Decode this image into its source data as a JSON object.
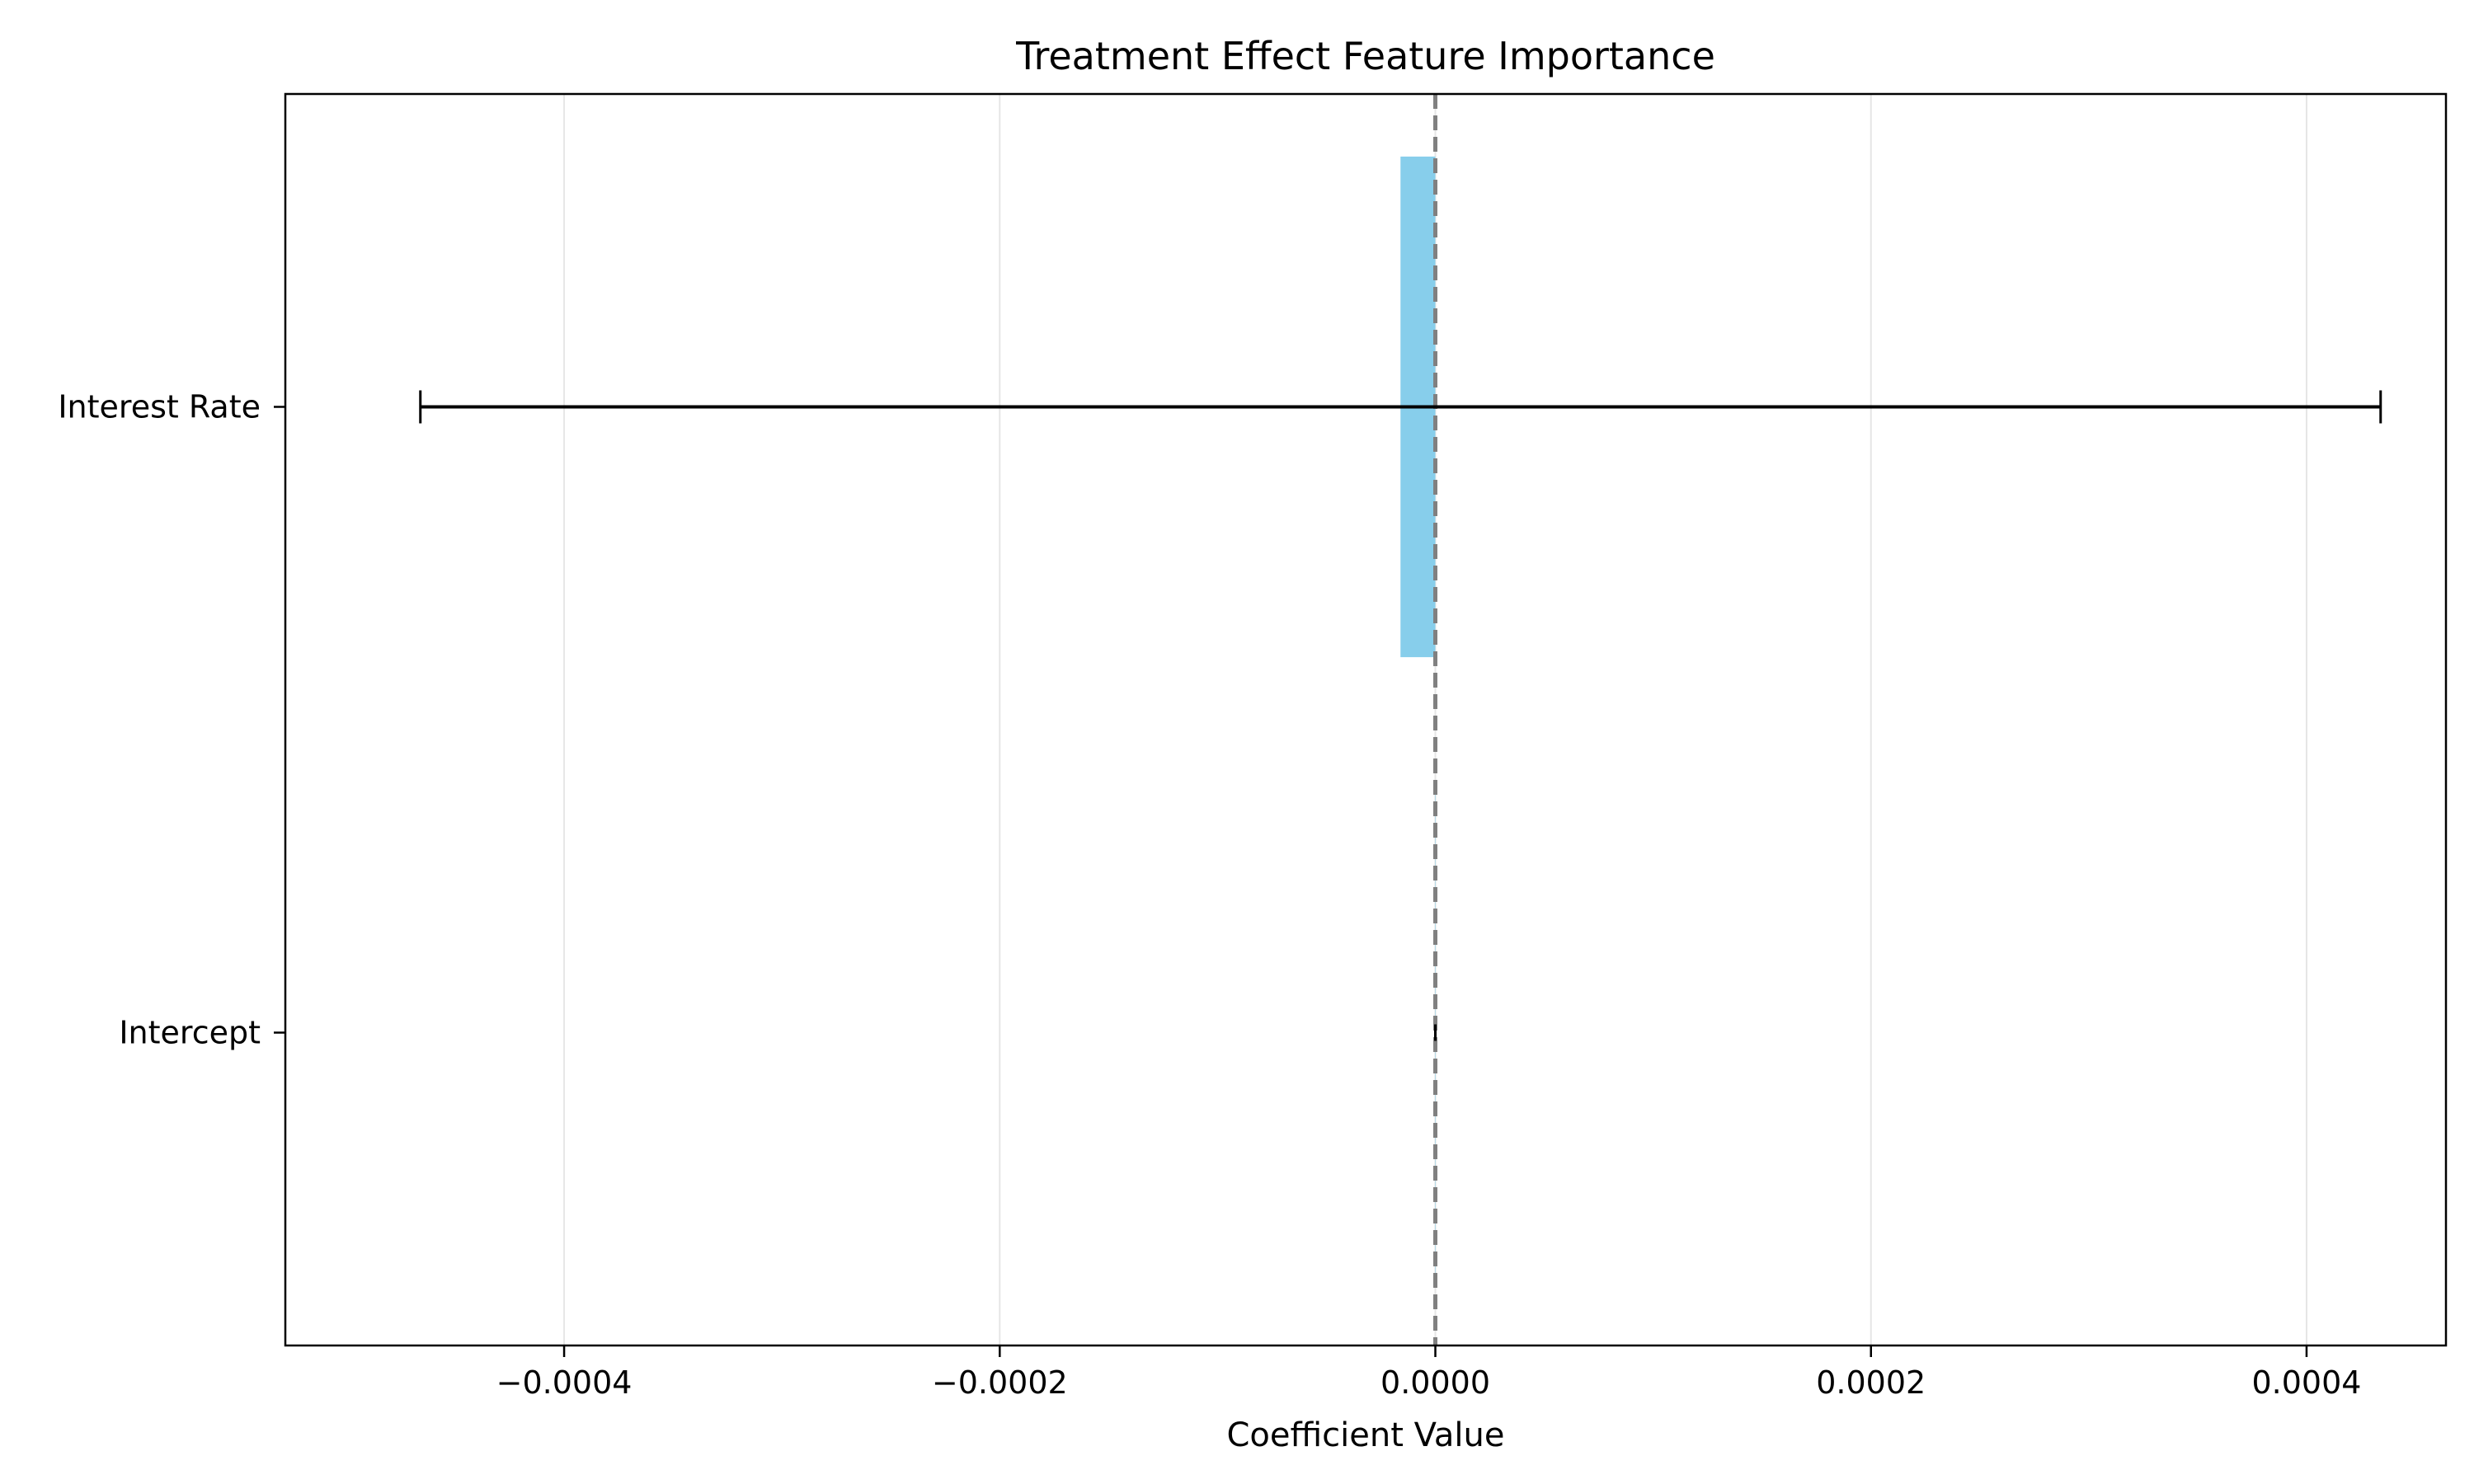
{
  "chart_data": {
    "type": "bar",
    "orientation": "horizontal",
    "title": "Treatment Effect Feature Importance",
    "xlabel": "Coefficient Value",
    "ylabel": "",
    "categories": [
      "Interest Rate",
      "Intercept"
    ],
    "values": [
      -1.6e-05,
      0.0
    ],
    "error": [
      0.00045,
      0.0
    ],
    "xlim": [
      -0.000528,
      0.000464
    ],
    "xticks": [
      -0.0004,
      -0.0002,
      0.0,
      0.0002,
      0.0004
    ],
    "xtick_labels": [
      "−0.0004",
      "−0.0002",
      "0.0000",
      "0.0002",
      "0.0004"
    ],
    "grid": "vertical",
    "reference_line": 0.0,
    "colors": {
      "bar": "#87ceeb",
      "errorbar": "#000000",
      "reference_line": "#808080",
      "grid": "#e6e6e6"
    }
  }
}
